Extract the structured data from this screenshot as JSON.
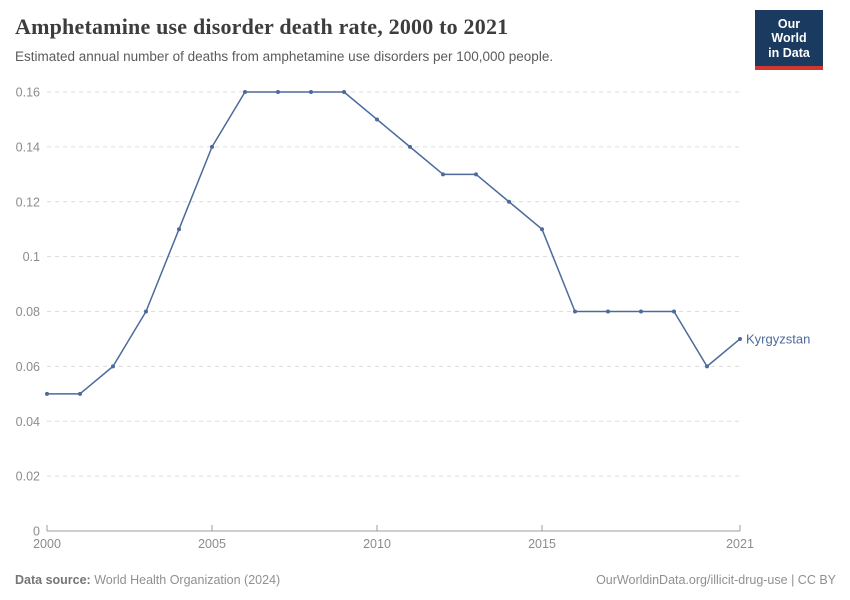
{
  "header": {
    "title": "Amphetamine use disorder death rate, 2000 to 2021",
    "subtitle": "Estimated annual number of deaths from amphetamine use disorders per 100,000 people.",
    "logo": {
      "line1": "Our World",
      "line2": "in Data",
      "bg_color": "#1b3a5f",
      "accent_color": "#d0382f"
    }
  },
  "chart_data": {
    "type": "line",
    "title": "Amphetamine use disorder death rate, 2000 to 2021",
    "xlabel": "",
    "ylabel": "",
    "x": [
      2000,
      2001,
      2002,
      2003,
      2004,
      2005,
      2006,
      2007,
      2008,
      2009,
      2010,
      2011,
      2012,
      2013,
      2014,
      2015,
      2016,
      2017,
      2018,
      2019,
      2020,
      2021
    ],
    "series": [
      {
        "name": "Kyrgyzstan",
        "color": "#4c6a9c",
        "values": [
          0.05,
          0.05,
          0.06,
          0.08,
          0.11,
          0.14,
          0.16,
          0.16,
          0.16,
          0.16,
          0.15,
          0.14,
          0.13,
          0.13,
          0.12,
          0.11,
          0.08,
          0.08,
          0.08,
          0.08,
          0.06,
          0.07
        ]
      }
    ],
    "xlim": [
      2000,
      2021
    ],
    "ylim": [
      0,
      0.16
    ],
    "xtick_values": [
      2000,
      2005,
      2010,
      2015,
      2021
    ],
    "xtick_labels": [
      "2000",
      "2005",
      "2010",
      "2015",
      "2021"
    ],
    "ytick_values": [
      0,
      0.02,
      0.04,
      0.06,
      0.08,
      0.1,
      0.12,
      0.14,
      0.16
    ],
    "ytick_labels": [
      "0",
      "0.02",
      "0.04",
      "0.06",
      "0.08",
      "0.1",
      "0.12",
      "0.14",
      "0.16"
    ],
    "grid": "horizontal-dashed",
    "legend_position": "end-of-line-label",
    "axis_color": "#9e9e9e",
    "grid_color": "#dcdcdc",
    "tick_label_color": "#8c8c8c"
  },
  "footer": {
    "source_label": "Data source:",
    "source_text": " World Health Organization (2024)",
    "link_text": "OurWorldinData.org/illicit-drug-use",
    "separator": " | ",
    "license_text": "CC BY"
  }
}
